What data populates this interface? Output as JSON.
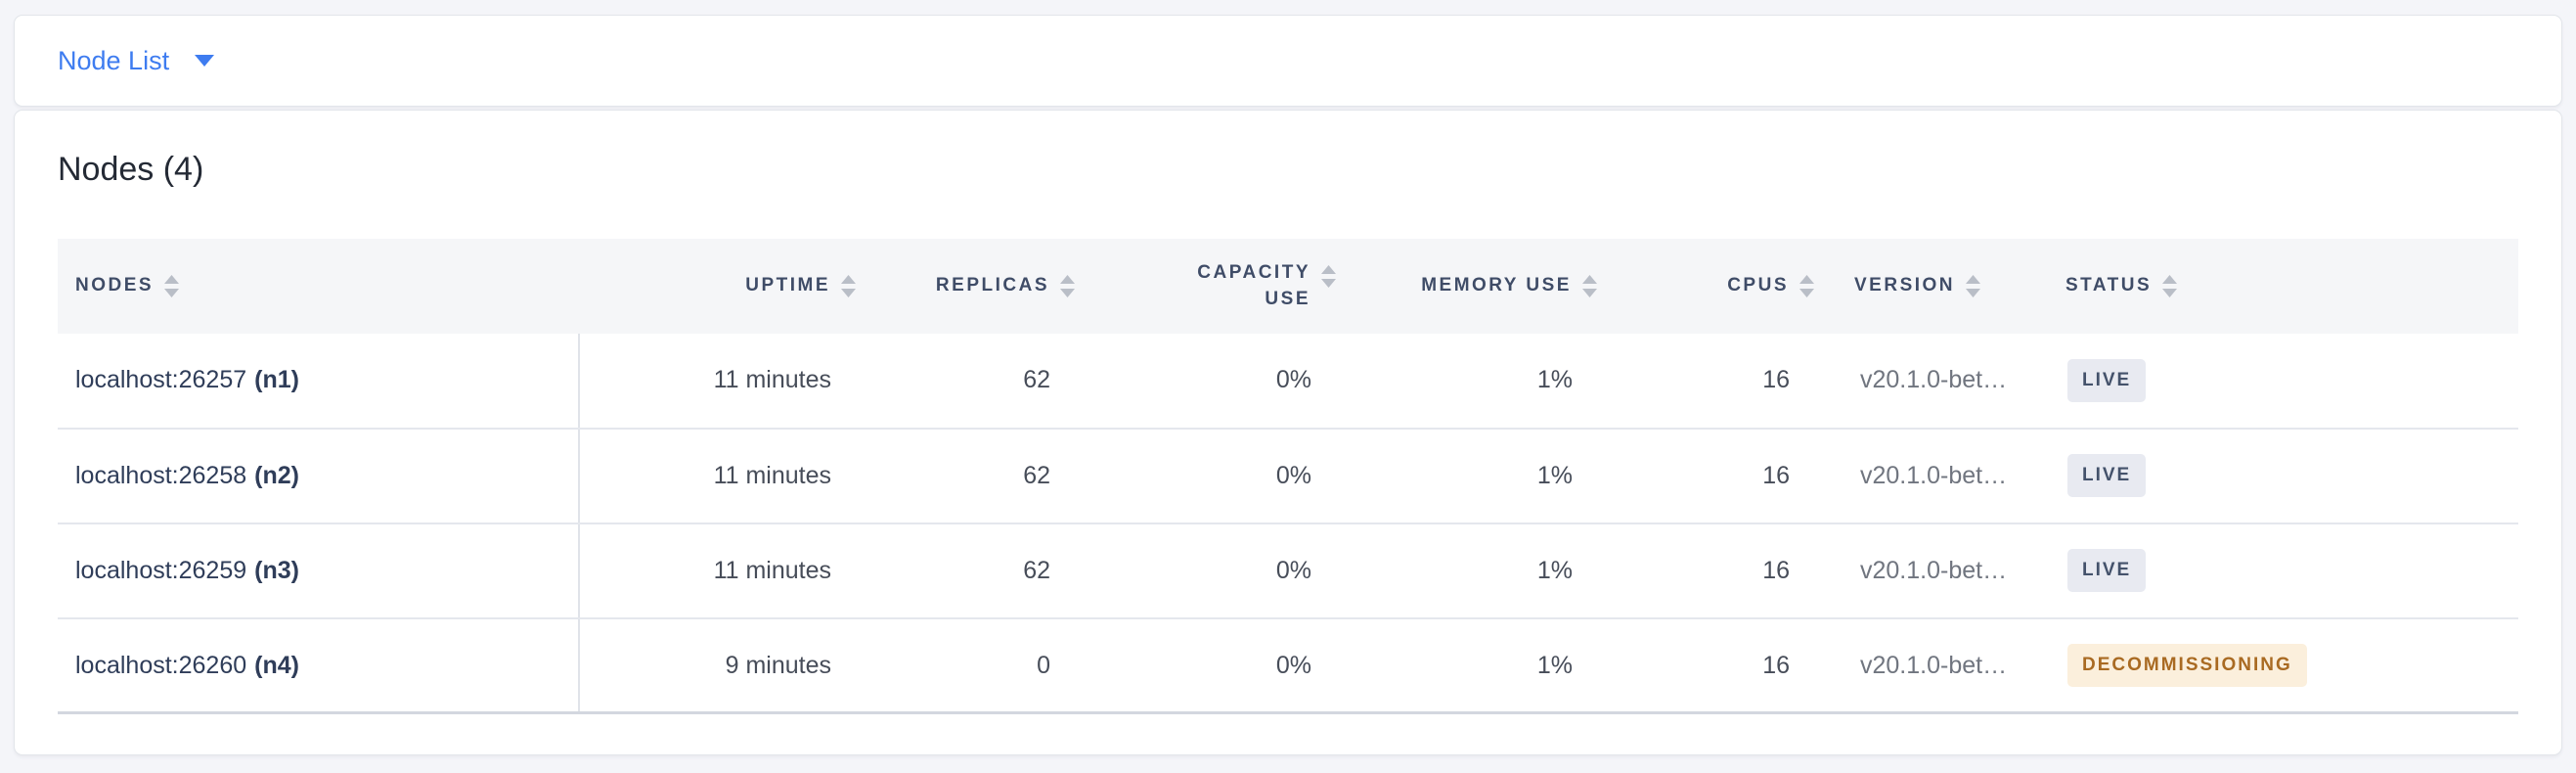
{
  "selector": {
    "label": "Node List"
  },
  "panel": {
    "title": "Nodes (4)"
  },
  "table": {
    "columns": [
      {
        "key": "nodes",
        "label": "NODES",
        "align": "left",
        "sortable": true
      },
      {
        "key": "uptime",
        "label": "UPTIME",
        "align": "right",
        "sortable": true
      },
      {
        "key": "replicas",
        "label": "REPLICAS",
        "align": "right",
        "sortable": true
      },
      {
        "key": "capacity_use",
        "label": "CAPACITY USE",
        "align": "right",
        "sortable": true
      },
      {
        "key": "memory_use",
        "label": "MEMORY USE",
        "align": "right",
        "sortable": true
      },
      {
        "key": "cpus",
        "label": "CPUS",
        "align": "right",
        "sortable": true
      },
      {
        "key": "version",
        "label": "VERSION",
        "align": "left",
        "sortable": true
      },
      {
        "key": "status",
        "label": "STATUS",
        "align": "left",
        "sortable": true
      }
    ],
    "rows": [
      {
        "address": "localhost:26257",
        "name": "(n1)",
        "uptime": "11 minutes",
        "replicas": "62",
        "capacity_use": "0%",
        "memory_use": "1%",
        "cpus": "16",
        "version": "v20.1.0-bet…",
        "status": "LIVE",
        "status_type": "live"
      },
      {
        "address": "localhost:26258",
        "name": "(n2)",
        "uptime": "11 minutes",
        "replicas": "62",
        "capacity_use": "0%",
        "memory_use": "1%",
        "cpus": "16",
        "version": "v20.1.0-bet…",
        "status": "LIVE",
        "status_type": "live"
      },
      {
        "address": "localhost:26259",
        "name": "(n3)",
        "uptime": "11 minutes",
        "replicas": "62",
        "capacity_use": "0%",
        "memory_use": "1%",
        "cpus": "16",
        "version": "v20.1.0-bet…",
        "status": "LIVE",
        "status_type": "live"
      },
      {
        "address": "localhost:26260",
        "name": "(n4)",
        "uptime": "9 minutes",
        "replicas": "0",
        "capacity_use": "0%",
        "memory_use": "1%",
        "cpus": "16",
        "version": "v20.1.0-bet…",
        "status": "DECOMMISSIONING",
        "status_type": "decommissioning"
      }
    ]
  },
  "colors": {
    "page_bg": "#F4F5F9",
    "card_bg": "#FFFFFF",
    "card_border": "#E2E5EA",
    "accent_blue": "#3E7CF0",
    "heading_text": "#242A35",
    "header_bg": "#F5F6F8",
    "header_text": "#3F4C67",
    "cell_text": "#474D59",
    "node_text": "#2F3D59",
    "version_text": "#70757F",
    "row_border": "#E4E7ED",
    "table_bottom_border": "#D3D7DF",
    "column_divider": "#E0E3E9",
    "sort_icon": "#B9BEC7",
    "status": {
      "live": {
        "bg": "#E8EAF1",
        "text": "#44526B"
      },
      "decommissioning": {
        "bg": "#FBEFDC",
        "text": "#A96A22"
      }
    }
  }
}
